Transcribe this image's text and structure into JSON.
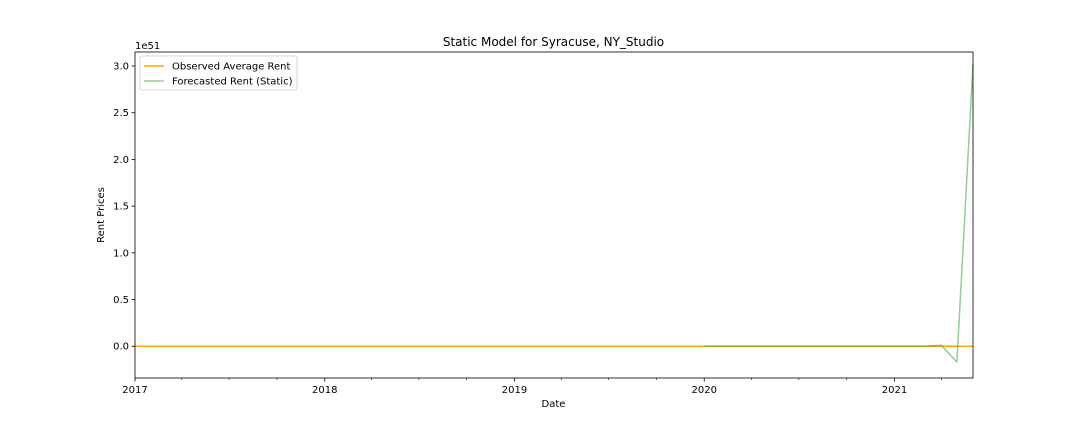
{
  "chart_data": {
    "type": "line",
    "title": "Static Model for Syracuse, NY_Studio",
    "xlabel": "Date",
    "ylabel": "Rent Prices",
    "y_offset_label": "1e51",
    "y_scale": 1e+51,
    "xlim": [
      "2017-01-01",
      "2021-06-01"
    ],
    "ylim": [
      -0.34,
      3.15
    ],
    "x_ticks": [
      {
        "date": "2017-01-01",
        "label": "2017"
      },
      {
        "date": "2018-01-01",
        "label": "2018"
      },
      {
        "date": "2019-01-01",
        "label": "2019"
      },
      {
        "date": "2020-01-01",
        "label": "2020"
      },
      {
        "date": "2021-01-01",
        "label": "2021"
      }
    ],
    "x_minor_ticks": [
      "2017-04-01",
      "2017-07-01",
      "2017-10-01",
      "2018-04-01",
      "2018-07-01",
      "2018-10-01",
      "2019-04-01",
      "2019-07-01",
      "2019-10-01",
      "2020-04-01",
      "2020-07-01",
      "2020-10-01",
      "2021-04-01"
    ],
    "y_ticks": [
      {
        "value": 0.0,
        "label": "0.0"
      },
      {
        "value": 0.5,
        "label": "0.5"
      },
      {
        "value": 1.0,
        "label": "1.0"
      },
      {
        "value": 1.5,
        "label": "1.5"
      },
      {
        "value": 2.0,
        "label": "2.0"
      },
      {
        "value": 2.5,
        "label": "2.5"
      },
      {
        "value": 3.0,
        "label": "3.0"
      }
    ],
    "grid": false,
    "legend_position": "top-left",
    "series": [
      {
        "name": "Observed Average Rent",
        "color": "#ffa500",
        "opacity": 1.0,
        "points": [
          {
            "x": "2017-01-01",
            "y": 0.0
          },
          {
            "x": "2021-06-01",
            "y": 0.0
          }
        ]
      },
      {
        "name": "Forecasted Rent (Static)",
        "color": "#2ca02c",
        "opacity": 0.5,
        "points": [
          {
            "x": "2020-01-01",
            "y": 0.0
          },
          {
            "x": "2021-03-01",
            "y": 0.0
          },
          {
            "x": "2021-04-01",
            "y": 0.01
          },
          {
            "x": "2021-05-01",
            "y": -0.17
          },
          {
            "x": "2021-06-01",
            "y": 3.02
          }
        ]
      }
    ]
  }
}
